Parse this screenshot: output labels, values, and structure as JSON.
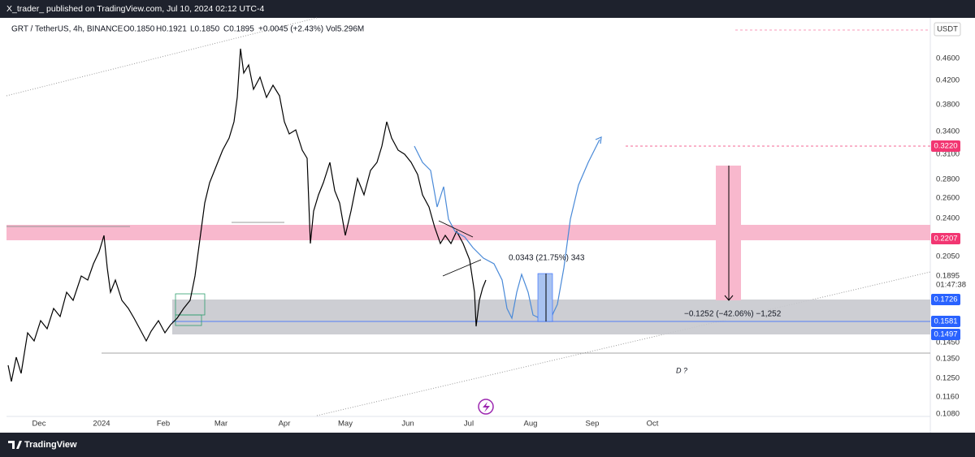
{
  "header": {
    "publisher": "X_trader_ published on TradingView.com, Jul 10, 2024 02:12 UTC-4"
  },
  "legend": {
    "symbol": "GRT / TetherUS, 4h, BINANCE",
    "open": "O0.1850",
    "high": "H0.1921",
    "low": "L0.1850",
    "close": "C0.1895",
    "change": "+0.0045 (+2.43%)",
    "volume": "Vol5.296M"
  },
  "price_axis": {
    "currency": "USDT",
    "labels": [
      "0.4600",
      "0.4200",
      "0.3800",
      "0.3400",
      "0.3100",
      "0.2800",
      "0.2600",
      "0.2400",
      "0.2050",
      "0.1895",
      "01:47:38",
      "0.1450",
      "0.1350",
      "0.1250",
      "0.1160",
      "0.1080"
    ],
    "badges": [
      {
        "label": "0.3220",
        "color": "#f23672"
      },
      {
        "label": "0.2207",
        "color": "#f23672"
      },
      {
        "label": "0.1726",
        "color": "#2962ff"
      },
      {
        "label": "0.1581",
        "color": "#2962ff"
      },
      {
        "label": "0.1497",
        "color": "#2962ff"
      }
    ]
  },
  "time_axis": {
    "labels": [
      "Dec",
      "2024",
      "Feb",
      "Mar",
      "Apr",
      "May",
      "Jun",
      "Jul",
      "Aug",
      "Sep",
      "Oct"
    ]
  },
  "annotations": {
    "gain": "0.0343 (21.75%) 343",
    "drop": "−0.1252 (−42.06%) −1,252",
    "note": "D ?"
  },
  "footer": {
    "brand": "TradingView"
  }
}
